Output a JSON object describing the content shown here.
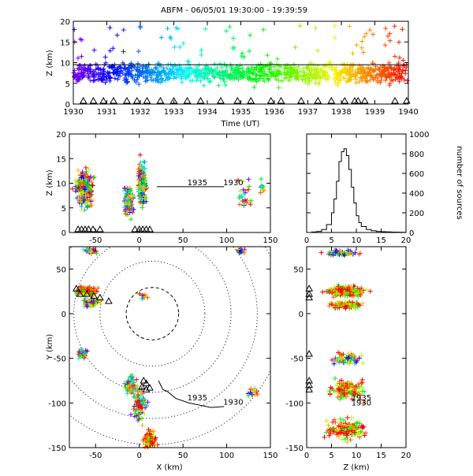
{
  "title": "ABFM - 06/05/01 19:30:00 - 19:39:59",
  "colors": {
    "axis": "#000000",
    "ring": "#000000",
    "triangle": "#000000"
  },
  "chart_data": [
    {
      "id": "time-height",
      "type": "scatter",
      "xlabel": "Time (UT)",
      "ylabel": "Z (km)",
      "xlim": [
        1930,
        1940
      ],
      "ylim": [
        0,
        20
      ],
      "xticks": [
        "1930",
        "1931",
        "1932",
        "1933",
        "1934",
        "1935",
        "1936",
        "1937",
        "1938",
        "1939",
        "1940"
      ],
      "yticks": [
        "0",
        "5",
        "10",
        "15",
        "20"
      ],
      "color_scale": "rainbow (time)",
      "reference_line_z": 9.5,
      "station_markers_x": [
        1930.3,
        1930.6,
        1930.9,
        1931.2,
        1931.6,
        1931.9,
        1932.2,
        1932.6,
        1933.0,
        1933.4,
        1933.8,
        1934.4,
        1934.9,
        1935.3,
        1935.9,
        1936.2,
        1936.8,
        1937.3,
        1937.7,
        1938.1,
        1938.4,
        1938.5,
        1938.7,
        1939.6,
        1939.95
      ]
    },
    {
      "id": "x-height",
      "type": "scatter",
      "xlabel": "",
      "ylabel": "Z (km)",
      "xlim": [
        -80,
        150
      ],
      "ylim": [
        0,
        20
      ],
      "xticks": [
        "-50",
        "0",
        "50",
        "100",
        "150"
      ],
      "yticks": [
        "0",
        "5",
        "10",
        "15",
        "20"
      ],
      "track_labels": [
        "1935",
        "1930"
      ],
      "track": {
        "x": [
          20,
          57,
          97
        ],
        "z": [
          9.3,
          9.3,
          9.3
        ]
      }
    },
    {
      "id": "height-histogram",
      "type": "line",
      "xlabel": "",
      "ylabel": "number of sources",
      "xlim": [
        0,
        20
      ],
      "ylim": [
        0,
        1000
      ],
      "xticks": [
        "0",
        "5",
        "10",
        "15",
        "20"
      ],
      "yticks": [
        "0",
        "200",
        "400",
        "600",
        "800",
        "1000"
      ],
      "x": [
        0,
        1,
        2,
        3,
        4,
        5,
        5.5,
        6,
        6.5,
        7,
        7.5,
        8,
        8.5,
        9,
        9.5,
        10,
        10.5,
        11,
        12,
        13,
        14,
        15,
        16,
        17,
        18,
        19,
        20
      ],
      "values": [
        0,
        5,
        10,
        30,
        80,
        200,
        340,
        520,
        720,
        820,
        850,
        780,
        640,
        460,
        300,
        170,
        100,
        60,
        30,
        18,
        10,
        8,
        6,
        4,
        3,
        2,
        1
      ]
    },
    {
      "id": "plan-view",
      "type": "scatter",
      "xlabel": "X (km)",
      "ylabel": "Y (km)",
      "xlim": [
        -80,
        150
      ],
      "ylim": [
        -150,
        75
      ],
      "xticks": [
        "-50",
        "0",
        "50",
        "100",
        "150"
      ],
      "yticks": [
        "-150",
        "-100",
        "-50",
        "0",
        "50"
      ],
      "ring_center": [
        15,
        0
      ],
      "ring_radii": [
        30,
        60,
        90,
        120,
        150
      ],
      "track_labels": [
        "1935",
        "1930"
      ],
      "track": {
        "x": [
          22,
          27,
          32,
          42,
          57,
          72,
          82,
          97
        ],
        "y": [
          -75,
          -85,
          -87,
          -95,
          -100,
          -103,
          -105,
          -104
        ]
      }
    },
    {
      "id": "height-y",
      "type": "scatter",
      "xlabel": "Z (km)",
      "ylabel": "",
      "xlim": [
        0,
        20
      ],
      "ylim": [
        -150,
        75
      ],
      "xticks": [
        "0",
        "5",
        "10",
        "15",
        "20"
      ],
      "yticks": [
        "-150",
        "-100",
        "-50",
        "0",
        "50"
      ],
      "track_labels": [
        "1935",
        "1930"
      ]
    }
  ]
}
